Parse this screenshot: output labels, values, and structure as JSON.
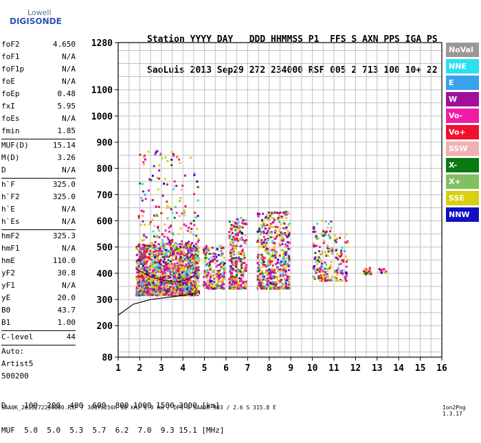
{
  "logo": {
    "line1": "Lowell",
    "line2": "DIGISONDE"
  },
  "header": {
    "line1": "Station YYYY DAY   DDD HHMMSS P1  FFS S AXN PPS IGA PS",
    "line2": "SaoLuis 2013 Sep29 272 234000 RSF 005 2 713 100 10+ 22"
  },
  "params": [
    {
      "name": "foF2",
      "value": "4.650"
    },
    {
      "name": "foF1",
      "value": "N/A"
    },
    {
      "name": "foF1p",
      "value": "N/A"
    },
    {
      "name": "foE",
      "value": "N/A"
    },
    {
      "name": "foEp",
      "value": "0.48"
    },
    {
      "name": "fxI",
      "value": "5.95"
    },
    {
      "name": "foEs",
      "value": "N/A"
    },
    {
      "name": "fmin",
      "value": "1.85"
    },
    {
      "sep": true
    },
    {
      "name": "MUF(D)",
      "value": "15.14"
    },
    {
      "name": "M(D)",
      "value": "3.26"
    },
    {
      "name": "D",
      "value": "N/A"
    },
    {
      "sep": true
    },
    {
      "name": "h`F",
      "value": "325.0"
    },
    {
      "name": "h`F2",
      "value": "325.0"
    },
    {
      "name": "h`E",
      "value": "N/A"
    },
    {
      "name": "h`Es",
      "value": "N/A"
    },
    {
      "sep": true
    },
    {
      "name": "hmF2",
      "value": "325.3"
    },
    {
      "name": "hmF1",
      "value": "N/A"
    },
    {
      "name": "hmE",
      "value": "110.0"
    },
    {
      "name": "yF2",
      "value": "30.8"
    },
    {
      "name": "yF1",
      "value": "N/A"
    },
    {
      "name": "yE",
      "value": "20.0"
    },
    {
      "name": "B0",
      "value": "43.7"
    },
    {
      "name": "B1",
      "value": "1.00"
    },
    {
      "sep": true
    },
    {
      "name": "C-level",
      "value": "44"
    },
    {
      "sep": true
    },
    {
      "name": "Auto:",
      "value": ""
    },
    {
      "name": "Artist5",
      "value": ""
    },
    {
      "name": "500200",
      "value": ""
    }
  ],
  "legend": [
    {
      "label": "NoVal",
      "color": "#999999"
    },
    {
      "label": "NNE",
      "color": "#2be0f0"
    },
    {
      "label": "E",
      "color": "#3aa2ee"
    },
    {
      "label": "W",
      "color": "#a0109c"
    },
    {
      "label": "Vo-",
      "color": "#f01ca8"
    },
    {
      "label": "Vo+",
      "color": "#f01030"
    },
    {
      "label": "SSW",
      "color": "#f2b0b0"
    },
    {
      "label": "X-",
      "color": "#0a7a10"
    },
    {
      "label": "X+",
      "color": "#80c060"
    },
    {
      "label": "SSE",
      "color": "#d8d010"
    },
    {
      "label": "NNW",
      "color": "#1010c0"
    }
  ],
  "footer": {
    "line1": "D    100  200  400  600  800 1000 1500 3000 [km]",
    "line2": "MUF  5.0  5.0  5.3  5.7  6.2  7.0  9.3 15.1 [MHz]",
    "line3": "SAA0K_2013272234000.RSF / 300fx256h 50 kHz 5.0 km / DPS-4 SAA0K 903 / 2.6 S 315.8 E",
    "version": "Ion2Png 1.3.17"
  },
  "chart_data": {
    "type": "scatter",
    "x": {
      "min": 1,
      "max": 16,
      "ticks": [
        1,
        2,
        3,
        4,
        5,
        6,
        7,
        8,
        9,
        10,
        11,
        12,
        13,
        14,
        15,
        16
      ]
    },
    "y": {
      "min": 80,
      "max": 1280,
      "ticks": [
        80,
        200,
        300,
        400,
        500,
        600,
        700,
        800,
        900,
        1000,
        1100,
        1280
      ]
    },
    "grid": true,
    "clusters": [
      {
        "fmin": 1.8,
        "fmax": 4.7,
        "hmin": 320,
        "hmax": 520,
        "n": 1800
      },
      {
        "fmin": 1.9,
        "fmax": 4.7,
        "hmin": 520,
        "hmax": 880,
        "n": 160
      },
      {
        "fmin": 4.9,
        "fmax": 5.9,
        "hmin": 345,
        "hmax": 510,
        "n": 220
      },
      {
        "fmin": 6.1,
        "fmax": 6.9,
        "hmin": 345,
        "hmax": 620,
        "n": 300
      },
      {
        "fmin": 7.4,
        "fmax": 8.9,
        "hmin": 345,
        "hmax": 640,
        "n": 520
      },
      {
        "fmin": 10.0,
        "fmax": 10.9,
        "hmin": 375,
        "hmax": 610,
        "n": 140
      },
      {
        "fmin": 11.0,
        "fmax": 11.6,
        "hmin": 375,
        "hmax": 560,
        "n": 70
      },
      {
        "fmin": 12.3,
        "fmax": 12.7,
        "hmin": 400,
        "hmax": 430,
        "n": 20
      },
      {
        "fmin": 13.0,
        "fmax": 13.4,
        "hmin": 405,
        "hmax": 425,
        "n": 12
      }
    ],
    "profile": [
      [
        1.0,
        240
      ],
      [
        1.7,
        282
      ],
      [
        2.5,
        300
      ],
      [
        3.5,
        310
      ],
      [
        4.2,
        318
      ],
      [
        4.65,
        325
      ]
    ],
    "trace": [
      [
        1.85,
        416
      ],
      [
        2.5,
        386
      ],
      [
        3.2,
        372
      ],
      [
        3.8,
        368
      ],
      [
        4.3,
        378
      ],
      [
        4.6,
        400
      ]
    ]
  }
}
